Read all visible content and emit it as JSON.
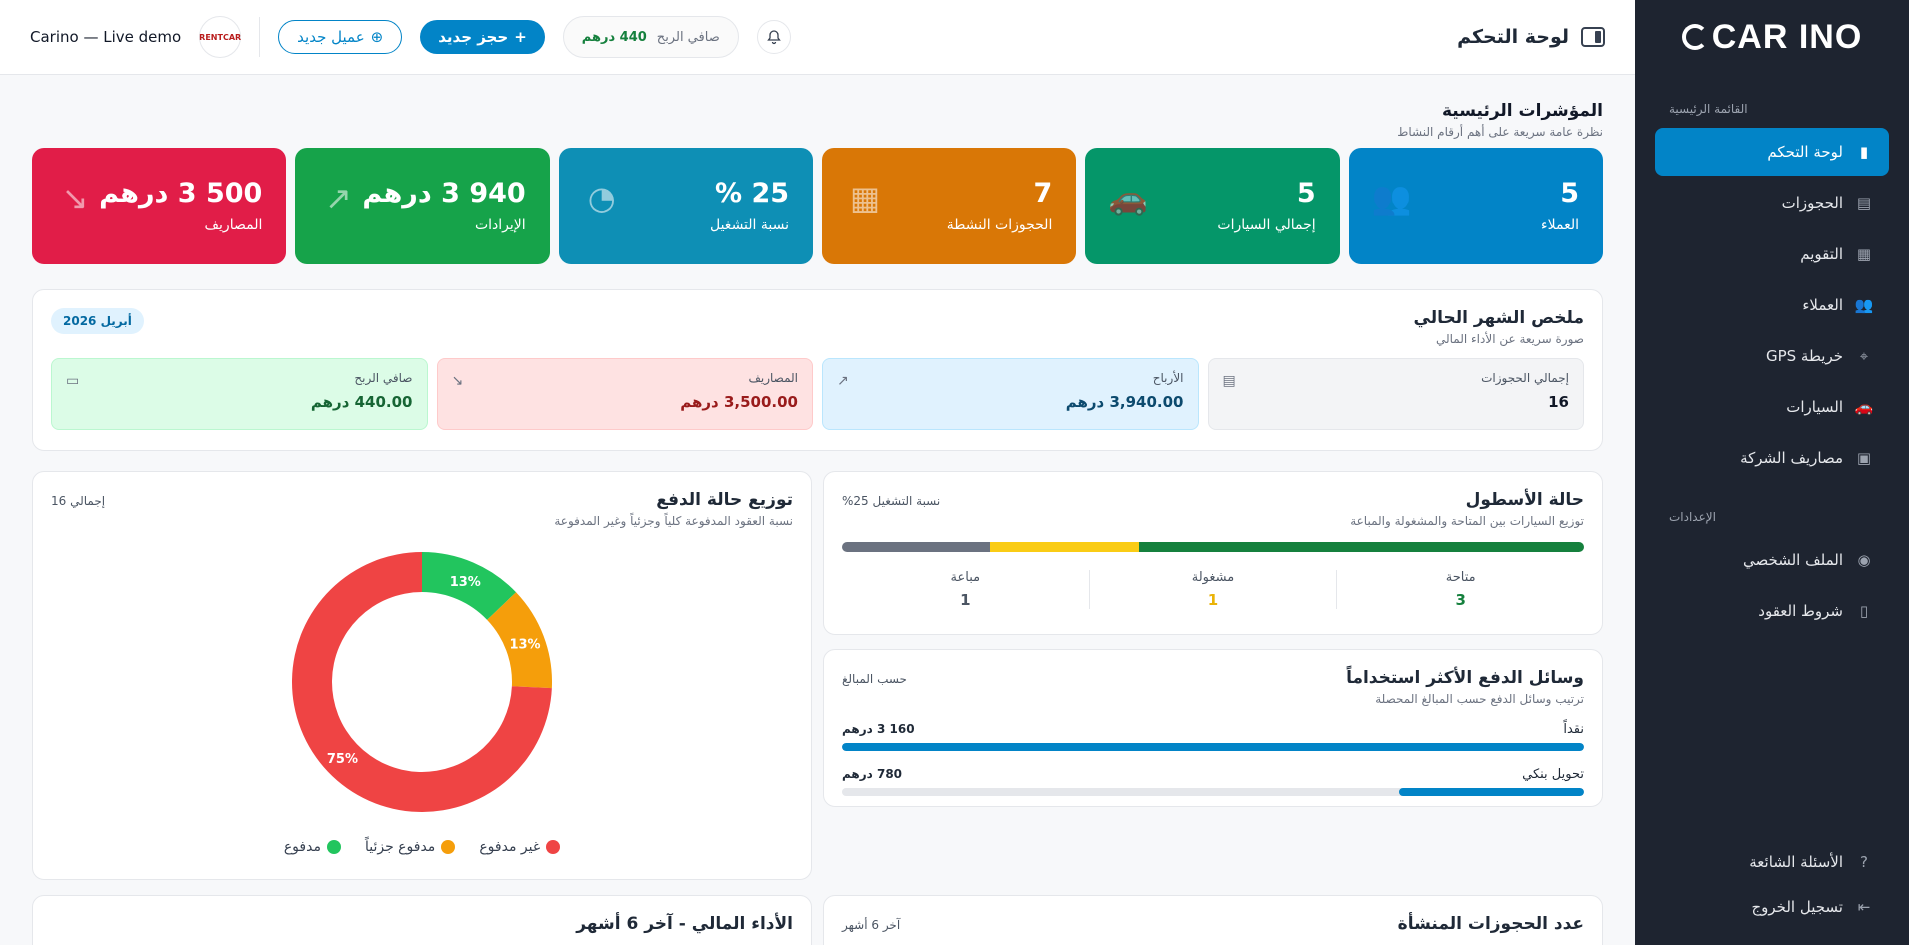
{
  "sidebar": {
    "logo": "CAR INO",
    "section_main": "القائمة الرئيسية",
    "section_settings": "الإعدادات",
    "items": [
      {
        "label": "لوحة التحكم",
        "icon": "chart-bar-icon",
        "active": true
      },
      {
        "label": "الحجوزات",
        "icon": "receipt-icon"
      },
      {
        "label": "التقويم",
        "icon": "calendar-icon"
      },
      {
        "label": "العملاء",
        "icon": "users-icon"
      },
      {
        "label": "خريطة GPS",
        "icon": "map-pin-icon"
      },
      {
        "label": "السيارات",
        "icon": "car-icon"
      },
      {
        "label": "مصاريف الشركة",
        "icon": "cash-icon"
      }
    ],
    "settings_items": [
      {
        "label": "الملف الشخصي",
        "icon": "user-circle-icon"
      },
      {
        "label": "شروط العقود",
        "icon": "document-icon"
      }
    ],
    "bottom_items": [
      {
        "label": "الأسئلة الشائعة",
        "icon": "question-circle-icon"
      },
      {
        "label": "تسجيل الخروج",
        "icon": "logout-icon"
      }
    ]
  },
  "topbar": {
    "title": "لوحة التحكم",
    "profit_label": "صافي الربح",
    "profit_value": "440 درهم",
    "new_booking": "حجز جديد",
    "new_client": "عميل جديد",
    "demo_label": "Carino — Live demo",
    "avatar_text": "RENTCAR"
  },
  "kpi_section": {
    "title": "المؤشرات الرئيسية",
    "subtitle": "نظرة عامة سريعة على أهم أرقام النشاط"
  },
  "kpis": [
    {
      "value": "5",
      "label": "العملاء",
      "color": "#0284c7",
      "icon": "users-icon"
    },
    {
      "value": "5",
      "label": "إجمالي السيارات",
      "color": "#059669",
      "icon": "car-icon"
    },
    {
      "value": "7",
      "label": "الحجوزات النشطة",
      "color": "#d97706",
      "icon": "calendar-check-icon"
    },
    {
      "value": "25 %",
      "label": "نسبة التشغيل",
      "color": "#0e8fb5",
      "icon": "gauge-icon"
    },
    {
      "value": "940 3 درهم",
      "label": "الإيرادات",
      "color": "#16a34a",
      "icon": "trend-up-icon"
    },
    {
      "value": "500 3 درهم",
      "label": "المصاريف",
      "color": "#e11d48",
      "icon": "trend-down-icon"
    }
  ],
  "summary": {
    "title": "ملخص الشهر الحالي",
    "subtitle": "صورة سريعة عن الأداء المالي",
    "month": "أبريل 2026",
    "boxes": [
      {
        "label": "إجمالي الحجوزات",
        "value": "16",
        "icon": "receipt-icon"
      },
      {
        "label": "الأرباح",
        "value": "3,940.00 درهم",
        "icon": "trend-up-icon"
      },
      {
        "label": "المصاريف",
        "value": "3,500.00 درهم",
        "icon": "trend-down-icon"
      },
      {
        "label": "صافي الربح",
        "value": "440.00 درهم",
        "icon": "wallet-icon"
      }
    ]
  },
  "fleet": {
    "title": "حالة الأسطول",
    "subtitle": "توزيع السيارات بين المتاحة والمشغولة والمباعة",
    "note": "نسبة التشغيل 25%",
    "stats": [
      {
        "label": "متاحة",
        "value": "3",
        "color": "#15803d"
      },
      {
        "label": "مشغولة",
        "value": "1",
        "color": "#eab308"
      },
      {
        "label": "مباعة",
        "value": "1",
        "color": "#4b5563"
      }
    ],
    "bar": [
      {
        "share": 0.6,
        "color": "#15803d"
      },
      {
        "share": 0.2,
        "color": "#facc15"
      },
      {
        "share": 0.2,
        "color": "#6b7280"
      }
    ]
  },
  "payment_methods": {
    "title": "وسائل الدفع الأكثر استخداماً",
    "subtitle": "ترتيب وسائل الدفع حسب المبالغ المحصلة",
    "note": "حسب المبالغ",
    "rows": [
      {
        "label": "نقداً",
        "value": "160 3 درهم",
        "share": 1.0
      },
      {
        "label": "تحويل بنكي",
        "value": "780 درهم",
        "share": 0.25
      }
    ]
  },
  "payment_status": {
    "title": "توزيع حالة الدفع",
    "subtitle": "نسبة العقود المدفوعة كلياً وجزئياً وغير المدفوعة",
    "note": "إجمالي 16"
  },
  "chart_data": {
    "type": "pie",
    "categories": [
      "مدفوع",
      "مدفوع جزئياً",
      "غير مدفوع"
    ],
    "values": [
      13,
      13,
      75
    ],
    "labels": [
      "13%",
      "13%",
      "75%"
    ],
    "colors": [
      "#22c55e",
      "#f59e0b",
      "#ef4444"
    ],
    "legend": "bottom"
  },
  "bottom_cards": {
    "finance_title": "الأداء المالي - آخر 6 أشهر",
    "bookings_title": "عدد الحجوزات المنشأة",
    "bookings_note": "آخر 6 أشهر"
  }
}
